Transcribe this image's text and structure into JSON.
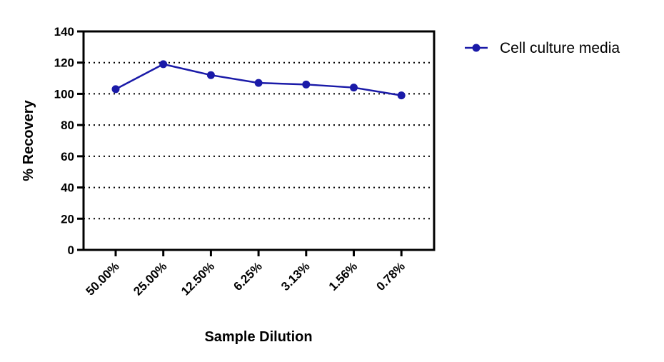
{
  "chart_data": {
    "type": "line",
    "categories": [
      "50.00%",
      "25.00%",
      "12.50%",
      "6.25%",
      "3.13%",
      "1.56%",
      "0.78%"
    ],
    "series": [
      {
        "name": "Cell culture media",
        "values": [
          103,
          119,
          112,
          107,
          106,
          104,
          99
        ],
        "color": "#1a1aa8"
      }
    ],
    "xlabel": "Sample Dilution",
    "ylabel": "% Recovery",
    "ylim": [
      0,
      140
    ],
    "yticks": [
      "0",
      "20",
      "40",
      "60",
      "80",
      "100",
      "120",
      "140"
    ],
    "grid": "horizontal dotted",
    "legend": "top-right"
  }
}
